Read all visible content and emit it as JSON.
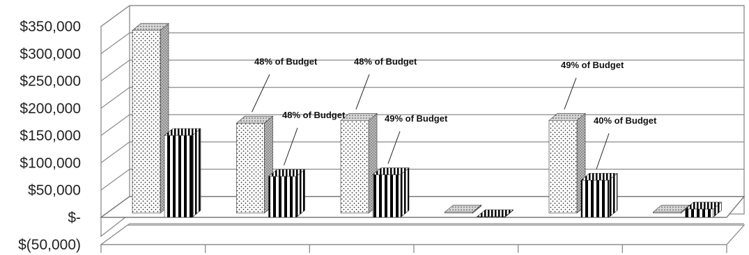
{
  "chart_data": {
    "type": "bar",
    "style": "3d-clustered-column",
    "categories": [
      "",
      "",
      "",
      "",
      "",
      ""
    ],
    "series": [
      {
        "pattern": "dotted",
        "values": [
          335000,
          165000,
          170000,
          2000,
          170000,
          2000
        ]
      },
      {
        "pattern": "vertical-stripes",
        "values": [
          150000,
          75000,
          78000,
          1000,
          68000,
          15000
        ]
      }
    ],
    "ylim": [
      -50000,
      350000
    ],
    "yticks": [
      350000,
      300000,
      250000,
      200000,
      150000,
      100000,
      50000,
      0,
      -50000
    ],
    "ytick_labels": [
      "$350,000",
      "$300,000",
      "$250,000",
      "$200,000",
      "$150,000",
      "$100,000",
      "$50,000",
      "$-",
      "$(50,000)"
    ],
    "annotations": [
      {
        "category_index": 1,
        "series_index": 0,
        "text": "48% of Budget"
      },
      {
        "category_index": 1,
        "series_index": 1,
        "text": "48% of Budget"
      },
      {
        "category_index": 2,
        "series_index": 0,
        "text": "48% of Budget"
      },
      {
        "category_index": 2,
        "series_index": 1,
        "text": "49% of Budget"
      },
      {
        "category_index": 4,
        "series_index": 0,
        "text": "49% of Budget"
      },
      {
        "category_index": 4,
        "series_index": 1,
        "text": "40% of Budget"
      }
    ],
    "grid": true,
    "legend": "none"
  }
}
